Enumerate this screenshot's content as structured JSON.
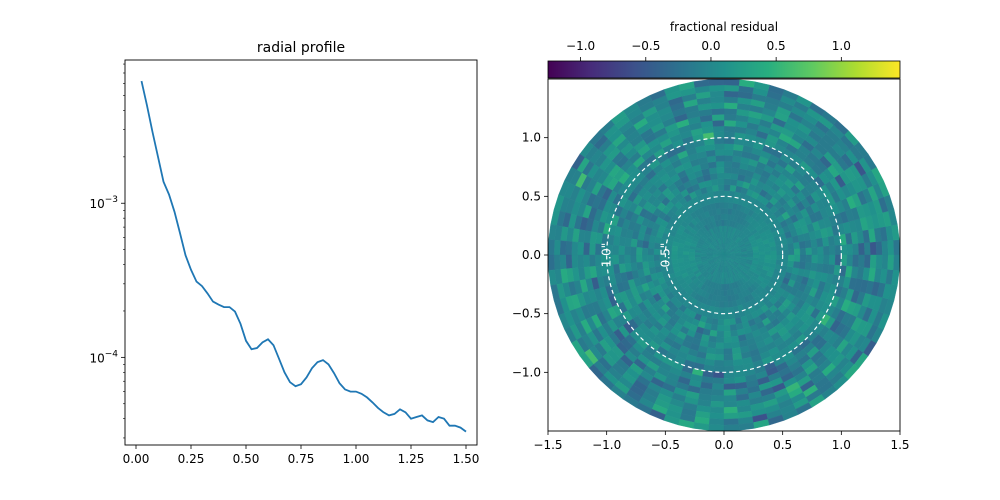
{
  "chart_data": [
    {
      "type": "line",
      "title": "radial profile",
      "xlabel": "",
      "ylabel": "",
      "yscale": "log",
      "xlim": [
        -0.05,
        1.55
      ],
      "ylim": [
        2.7e-05,
        0.0085
      ],
      "x_ticks": [
        0.0,
        0.25,
        0.5,
        0.75,
        1.0,
        1.25,
        1.5
      ],
      "x_tick_labels": [
        "0.00",
        "0.25",
        "0.50",
        "0.75",
        "1.00",
        "1.25",
        "1.50"
      ],
      "y_major_ticks": [
        0.001,
        0.0001
      ],
      "y_tick_labels": [
        "10^-3",
        "10^-4"
      ],
      "color": "#1f77b4",
      "grid": false,
      "series": [
        {
          "x": [
            0.025,
            0.05,
            0.075,
            0.1,
            0.125,
            0.15,
            0.175,
            0.2,
            0.225,
            0.25,
            0.275,
            0.3,
            0.325,
            0.35,
            0.375,
            0.4,
            0.425,
            0.45,
            0.475,
            0.5,
            0.525,
            0.55,
            0.575,
            0.6,
            0.625,
            0.65,
            0.675,
            0.7,
            0.725,
            0.75,
            0.775,
            0.8,
            0.825,
            0.85,
            0.875,
            0.9,
            0.925,
            0.95,
            0.975,
            1.0,
            1.025,
            1.05,
            1.075,
            1.1,
            1.125,
            1.15,
            1.175,
            1.2,
            1.225,
            1.25,
            1.275,
            1.3,
            1.325,
            1.35,
            1.375,
            1.4,
            1.425,
            1.45,
            1.475,
            1.5
          ],
          "y": [
            0.0062,
            0.0043,
            0.0029,
            0.002,
            0.00138,
            0.00114,
            0.00088,
            0.00064,
            0.00046,
            0.00037,
            0.00031,
            0.00029,
            0.00026,
            0.00023,
            0.00022,
            0.000212,
            0.000212,
            0.000198,
            0.000165,
            0.000128,
            0.000113,
            0.000115,
            0.000125,
            0.000131,
            0.00012,
            9.8e-05,
            8e-05,
            6.9e-05,
            6.5e-05,
            6.7e-05,
            7.4e-05,
            8.5e-05,
            9.3e-05,
            9.6e-05,
            9e-05,
            7.9e-05,
            6.8e-05,
            6.2e-05,
            6e-05,
            6e-05,
            5.8e-05,
            5.5e-05,
            5.1e-05,
            4.7e-05,
            4.4e-05,
            4.2e-05,
            4.3e-05,
            4.6e-05,
            4.4e-05,
            4e-05,
            4.1e-05,
            4.2e-05,
            3.9e-05,
            3.8e-05,
            4.1e-05,
            4e-05,
            3.6e-05,
            3.6e-05,
            3.5e-05,
            3.3e-05
          ]
        }
      ]
    },
    {
      "type": "heatmap",
      "title": "",
      "colorbar_label": "fractional residual",
      "colorbar_ticks": [
        -1.0,
        -0.5,
        0.0,
        0.5,
        1.0
      ],
      "colorbar_tick_labels": [
        "−1.0",
        "−0.5",
        "0.0",
        "0.5",
        "1.0"
      ],
      "colorbar_range": [
        -1.25,
        1.45
      ],
      "colormap": "viridis",
      "xlim": [
        -1.5,
        1.5
      ],
      "ylim": [
        -1.5,
        1.5
      ],
      "x_ticks": [
        -1.5,
        -1.0,
        -0.5,
        0.0,
        0.5,
        1.0,
        1.5
      ],
      "x_tick_labels": [
        "−1.5",
        "−1.0",
        "−0.5",
        "0.0",
        "0.5",
        "1.0",
        "1.5"
      ],
      "y_ticks": [
        -1.0,
        -0.5,
        0.0,
        0.5,
        1.0
      ],
      "y_tick_labels": [
        "−1.0",
        "−0.5",
        "0.0",
        "0.5",
        "1.0"
      ],
      "disk_outer_radius": 1.5,
      "ring_width": 0.05,
      "n_sectors": 72,
      "reference_circles": [
        {
          "radius": 0.5,
          "label": "0.5\""
        },
        {
          "radius": 1.0,
          "label": "1.0\""
        }
      ],
      "annotations": [
        "0.5\"",
        "1.0\""
      ]
    }
  ]
}
